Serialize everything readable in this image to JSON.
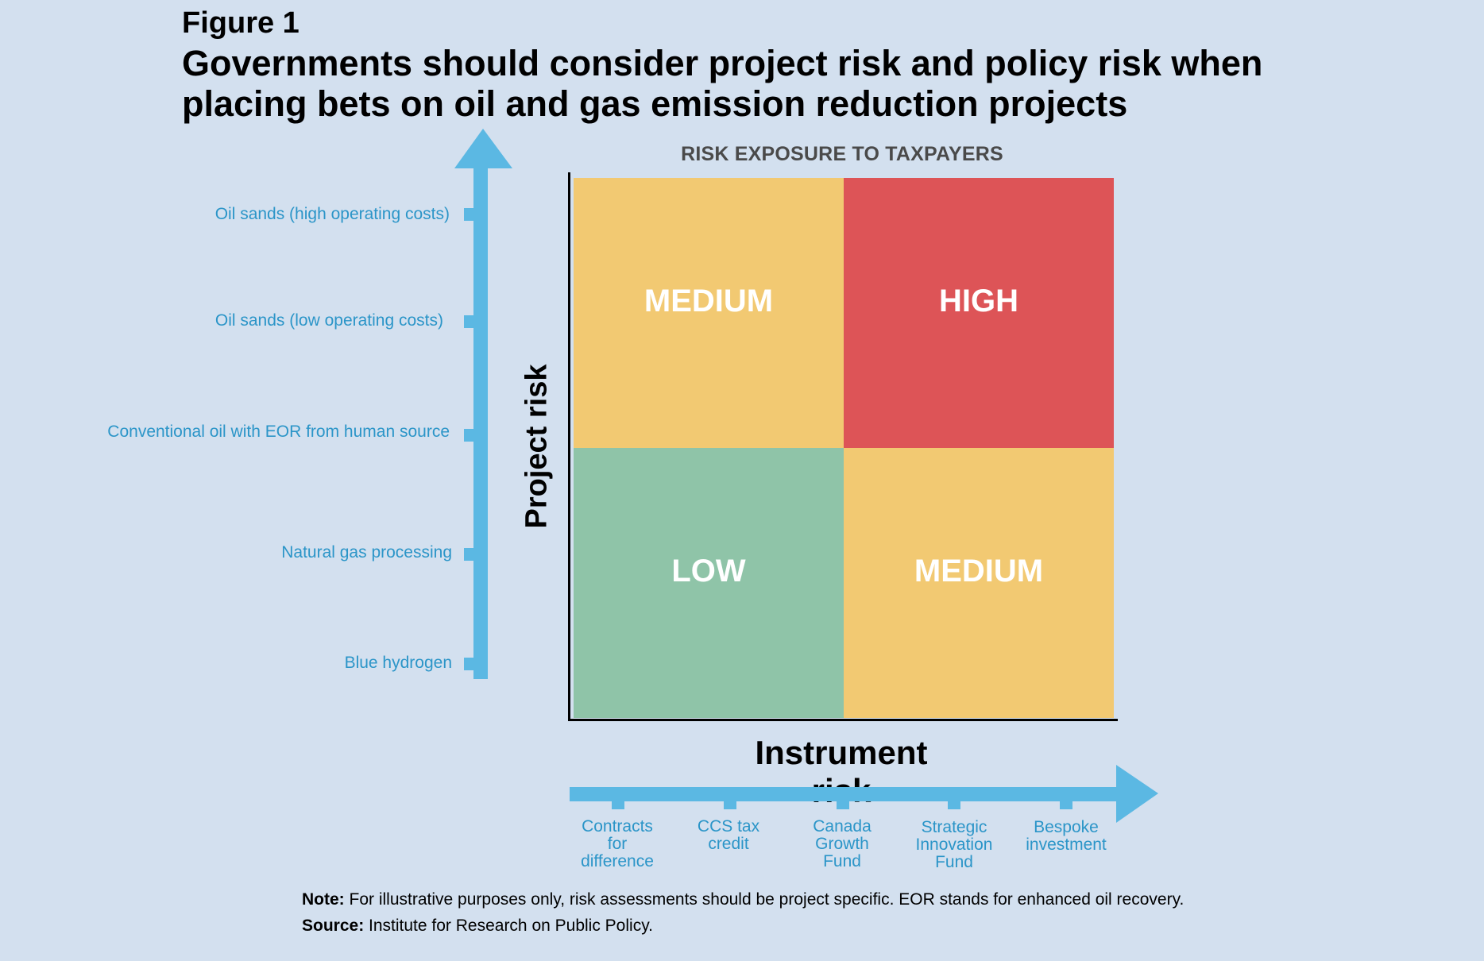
{
  "figure": {
    "label": "Figure 1",
    "title": "Governments should consider project risk and policy risk when placing bets on oil and gas emission reduction projects"
  },
  "matrix": {
    "title": "RISK EXPOSURE TO TAXPAYERS",
    "cells": {
      "top_left": {
        "label": "MEDIUM",
        "color": "#f2c972"
      },
      "top_right": {
        "label": "HIGH",
        "color": "#dd5457"
      },
      "bottom_left": {
        "label": "LOW",
        "color": "#8fc4a8"
      },
      "bottom_right": {
        "label": "MEDIUM",
        "color": "#f2c972"
      }
    }
  },
  "y_axis": {
    "title": "Project risk",
    "labels": [
      "Oil sands (high operating costs)",
      "Oil sands (low operating costs)",
      "Conventional oil with EOR from human source",
      "Natural gas processing",
      "Blue hydrogen"
    ]
  },
  "x_axis": {
    "title": "Instrument risk",
    "labels": [
      "Contracts\nfor\ndifference",
      "CCS tax\ncredit",
      "Canada\nGrowth\nFund",
      "Strategic\nInnovation\nFund",
      "Bespoke\ninvestment"
    ]
  },
  "footer": {
    "note_label": "Note:",
    "note_text": " For illustrative purposes only, risk assessments should be project specific. EOR stands for enhanced oil recovery.",
    "source_label": "Source:",
    "source_text": " Institute for Research on Public Policy."
  },
  "colors": {
    "background": "#d3e0ef",
    "arrow": "#5bb8e3",
    "axis_label": "#2b95c8"
  }
}
